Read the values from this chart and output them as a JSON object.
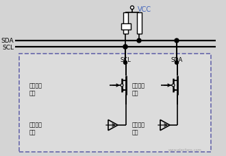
{
  "bg_color": "#d4d4d4",
  "box_bg_color": "#dcdcdc",
  "line_color": "#000000",
  "dashed_box_edge": "#6666aa",
  "text_color": "#000000",
  "text_color_blue": "#4466bb",
  "vcc_label": "VCC",
  "sda_label": "SDA",
  "scl_label": "SCL",
  "scl_node_label": "SCL",
  "sda_node_label": "SDA",
  "label_serial_clk_out": "串行时钟\n输出",
  "label_serial_clk_in": "串行时钟\n输入",
  "label_serial_data_out": "串行数据\n输出",
  "label_serial_data_in": "串行数据\n输入",
  "watermark": "www.elecfans.com"
}
